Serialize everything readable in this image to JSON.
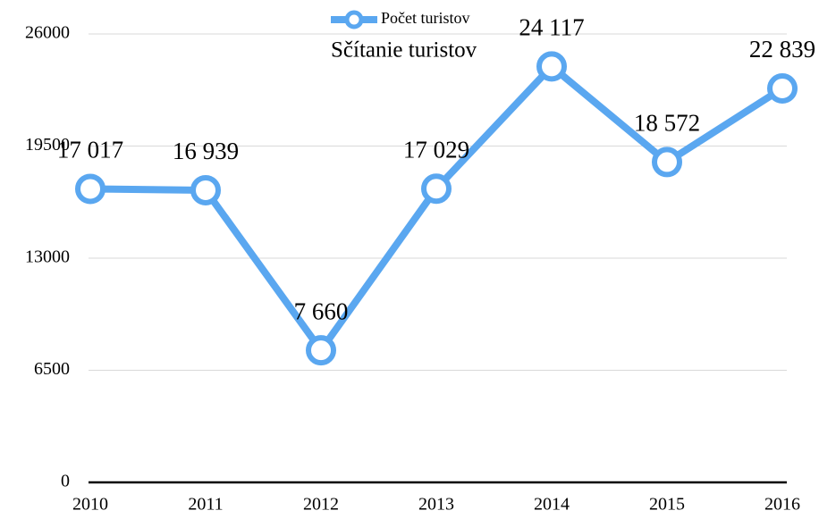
{
  "chart_data": {
    "type": "line",
    "title": "Sčítanie turistov",
    "categories": [
      "2010",
      "2011",
      "2012",
      "2013",
      "2014",
      "2015",
      "2016"
    ],
    "series": [
      {
        "name": "Počet turistov",
        "color": "#5aa7f0",
        "values": [
          17017,
          16939,
          7660,
          17029,
          24117,
          18572,
          22839
        ],
        "value_labels": [
          "17 017",
          "16 939",
          "7 660",
          "17 029",
          "24 117",
          "18 572",
          "22 839"
        ]
      }
    ],
    "ylim": [
      0,
      26000
    ],
    "yticks": [
      0,
      6500,
      13000,
      19500,
      26000
    ],
    "grid": true,
    "legend": "top"
  }
}
